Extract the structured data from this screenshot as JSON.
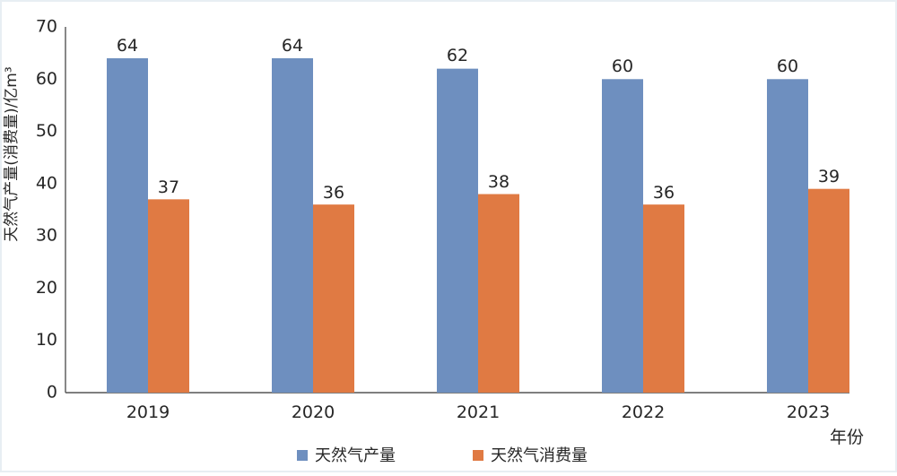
{
  "chart_data": {
    "type": "bar",
    "categories": [
      "2019",
      "2020",
      "2021",
      "2022",
      "2023"
    ],
    "series": [
      {
        "name": "天然气产量",
        "values": [
          64,
          64,
          62,
          60,
          60
        ],
        "color": "#6e8fbf"
      },
      {
        "name": "天然气消费量",
        "values": [
          37,
          36,
          38,
          36,
          39
        ],
        "color": "#e07a43"
      }
    ],
    "data_labels": {
      "production": [
        "64",
        "64",
        "62",
        "60",
        "60"
      ],
      "consumption": [
        "37",
        "36",
        "38",
        "36",
        "39"
      ]
    },
    "yticks": [
      "0",
      "10",
      "20",
      "30",
      "40",
      "50",
      "60",
      "70"
    ],
    "ylim": [
      0,
      70
    ],
    "ylabel": "天然气产量(消费量)/亿m³",
    "xlabel": "年份",
    "legend": [
      "天然气产量",
      "天然气消费量"
    ],
    "legend_position": "bottom",
    "grid": false
  }
}
